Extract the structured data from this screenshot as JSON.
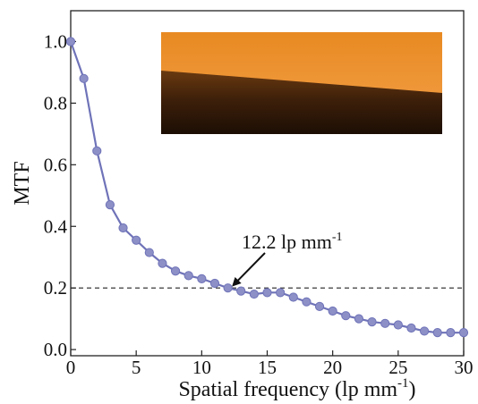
{
  "chart_data": {
    "type": "line",
    "xlabel": "Spatial frequency (lp mm",
    "xlabel_sup": "-1",
    "xlabel_end": ")",
    "ylabel": "MTF",
    "xlim": [
      0,
      30
    ],
    "ylim": [
      -0.02,
      1.1
    ],
    "xticks": [
      0,
      5,
      10,
      15,
      20,
      25,
      30
    ],
    "yticks": [
      0.0,
      0.2,
      0.4,
      0.6,
      0.8,
      1.0
    ],
    "xtick_labels": [
      "0",
      "5",
      "10",
      "15",
      "20",
      "25",
      "30"
    ],
    "ytick_labels": [
      "0.0",
      "0.2",
      "0.4",
      "0.6",
      "0.8",
      "1.0"
    ],
    "grid": false,
    "series": [
      {
        "color": "#6f73b8",
        "x": [
          0,
          1,
          2,
          3,
          4,
          5,
          6,
          7,
          8,
          9,
          10,
          11,
          12,
          13,
          14,
          15,
          16,
          17,
          18,
          19,
          20,
          21,
          22,
          23,
          24,
          25,
          26,
          27,
          28,
          29,
          30
        ],
        "y": [
          1.0,
          0.88,
          0.645,
          0.47,
          0.395,
          0.355,
          0.315,
          0.28,
          0.255,
          0.24,
          0.23,
          0.215,
          0.2,
          0.19,
          0.18,
          0.185,
          0.185,
          0.17,
          0.155,
          0.14,
          0.125,
          0.11,
          0.1,
          0.09,
          0.085,
          0.08,
          0.07,
          0.06,
          0.055,
          0.055,
          0.055
        ]
      }
    ],
    "reference_line": {
      "y": 0.2,
      "style": "dashed"
    },
    "annotation": {
      "text": "12.2 lp mm",
      "sup": "-1",
      "arrow_target": [
        12.2,
        0.2
      ]
    },
    "inset": {
      "kind": "knife-edge image",
      "colors": {
        "bright": "#f29a35",
        "bright_top": "#e88a22",
        "dark": "#2b1505",
        "dark_mid": "#6a3a10"
      }
    }
  }
}
